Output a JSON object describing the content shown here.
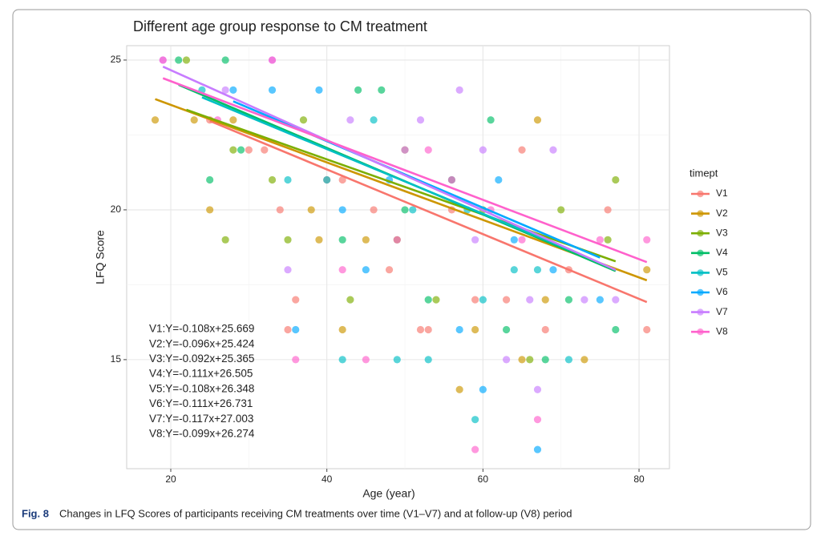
{
  "chart_data": {
    "type": "scatter",
    "title": "Different age group response to CM treatment",
    "x_label": "Age (year)",
    "y_label": "LFQ Score",
    "legend_title": "timept",
    "legend_position": "right",
    "caption_label": "Fig. 8",
    "caption": "Changes in LFQ Scores of participants receiving CM treatments over time (V1–V7) and at follow-up (V8) period",
    "xlim": [
      14.35,
      83.9
    ],
    "ylim": [
      11.36,
      25.48
    ],
    "xticks": [
      20,
      40,
      60,
      80
    ],
    "yticks": [
      15,
      20,
      25
    ],
    "grid": true,
    "series": [
      {
        "name": "V1",
        "color": "#F8766D",
        "x": [
          25,
          30,
          32,
          34,
          36,
          40,
          42,
          46,
          48,
          52,
          53,
          56,
          59,
          63,
          65,
          68,
          71,
          76,
          81,
          35
        ],
        "values": [
          23,
          22,
          22,
          20,
          17,
          21,
          21,
          20,
          18,
          16,
          16,
          20,
          17,
          17,
          22,
          16,
          18,
          20,
          16,
          16
        ],
        "fit": {
          "slope": -0.108,
          "intercept": 25.669,
          "label": "V1:Y=-0.108x+25.669"
        }
      },
      {
        "name": "V2",
        "color": "#CD9600",
        "x": [
          18,
          23,
          25,
          28,
          38,
          39,
          42,
          45,
          50,
          57,
          59,
          65,
          67,
          68,
          73,
          81
        ],
        "values": [
          23,
          23,
          20,
          23,
          20,
          19,
          16,
          19,
          22,
          14,
          16,
          15,
          23,
          17,
          15,
          18
        ],
        "fit": {
          "slope": -0.096,
          "intercept": 25.424,
          "label": "V2:Y=-0.096x+25.424"
        }
      },
      {
        "name": "V3",
        "color": "#7CAE00",
        "x": [
          22,
          27,
          28,
          33,
          35,
          37,
          43,
          49,
          54,
          60,
          66,
          70,
          76,
          77
        ],
        "values": [
          25,
          19,
          22,
          21,
          19,
          23,
          17,
          19,
          17,
          20,
          15,
          20,
          19,
          21
        ],
        "fit": {
          "slope": -0.092,
          "intercept": 25.365,
          "label": "V3:Y=-0.092x+25.365"
        }
      },
      {
        "name": "V4",
        "color": "#00BE67",
        "x": [
          21,
          25,
          27,
          29,
          42,
          44,
          47,
          50,
          53,
          56,
          61,
          63,
          68,
          71,
          77
        ],
        "values": [
          25,
          21,
          25,
          22,
          19,
          24,
          24,
          20,
          17,
          21,
          23,
          16,
          15,
          17,
          16
        ],
        "fit": {
          "slope": -0.111,
          "intercept": 26.505,
          "label": "V4:Y=-0.111x+26.505"
        }
      },
      {
        "name": "V5",
        "color": "#00BFC4",
        "x": [
          24,
          35,
          40,
          42,
          46,
          49,
          51,
          53,
          58,
          59,
          60,
          64,
          67,
          71
        ],
        "values": [
          24,
          21,
          21,
          15,
          23,
          15,
          20,
          15,
          20,
          13,
          17,
          18,
          18,
          15
        ],
        "fit": {
          "slope": -0.108,
          "intercept": 26.348,
          "label": "V5:Y=-0.108x+26.348"
        }
      },
      {
        "name": "V6",
        "color": "#00A9FF",
        "x": [
          28,
          33,
          36,
          39,
          42,
          45,
          48,
          57,
          60,
          62,
          64,
          67,
          69,
          75
        ],
        "values": [
          24,
          24,
          16,
          24,
          20,
          18,
          21,
          16,
          14,
          21,
          19,
          12,
          18,
          17
        ],
        "fit": {
          "slope": -0.111,
          "intercept": 26.731,
          "label": "V6:Y=-0.111x+26.731"
        }
      },
      {
        "name": "V7",
        "color": "#C77CFF",
        "x": [
          19,
          27,
          33,
          35,
          43,
          50,
          52,
          57,
          59,
          60,
          63,
          66,
          67,
          69,
          73,
          77
        ],
        "values": [
          25,
          24,
          25,
          18,
          23,
          22,
          23,
          24,
          19,
          22,
          15,
          17,
          14,
          22,
          17,
          17
        ],
        "fit": {
          "slope": -0.117,
          "intercept": 27.003,
          "label": "V7:Y=-0.117x+27.003"
        }
      },
      {
        "name": "V8",
        "color": "#FF61CC",
        "x": [
          19,
          26,
          33,
          36,
          42,
          45,
          49,
          53,
          56,
          59,
          61,
          65,
          67,
          75,
          81
        ],
        "values": [
          25,
          23,
          25,
          15,
          18,
          15,
          19,
          22,
          21,
          12,
          20,
          19,
          13,
          19,
          19
        ],
        "fit": {
          "slope": -0.099,
          "intercept": 26.274,
          "label": "V8:Y=-0.099x+26.274"
        }
      }
    ]
  }
}
